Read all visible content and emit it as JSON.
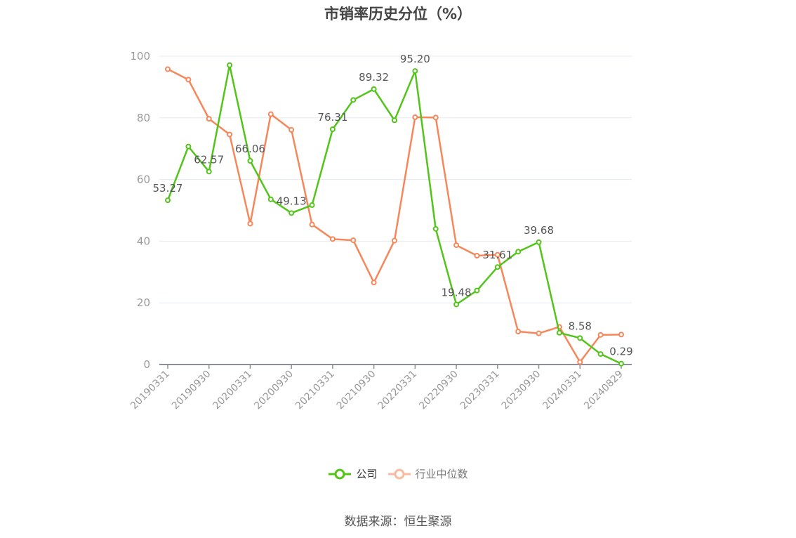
{
  "title": "市销率历史分位（%）",
  "legend": {
    "company": "公司",
    "industry": "行业中位数"
  },
  "source": "数据来源：恒生聚源",
  "colors": {
    "company": "#52c41a",
    "industry": "#f5875a",
    "industry_legend": "#f9bba0",
    "grid": "#e3e8f2",
    "axis": "#8a8f99",
    "label": "#999999",
    "value_label": "#555555"
  },
  "chart_data": {
    "type": "line",
    "title": "市销率历史分位（%）",
    "xlabel": "",
    "ylabel": "",
    "ylim": [
      0,
      100
    ],
    "yticks": [
      0,
      20,
      40,
      60,
      80,
      100
    ],
    "grid": true,
    "legend_position": "bottom",
    "x": [
      "20190331",
      "",
      "20190930",
      "",
      "20200331",
      "",
      "20200930",
      "",
      "20210331",
      "",
      "20210930",
      "",
      "20220331",
      "",
      "20220930",
      "",
      "20230331",
      "",
      "20230930",
      "",
      "20240331",
      "",
      "20240829"
    ],
    "xtick_labels": [
      "20190331",
      "20190930",
      "20200331",
      "20200930",
      "20210331",
      "20210930",
      "20220331",
      "20220930",
      "20230331",
      "20230930",
      "20240331",
      "20240829"
    ],
    "series": [
      {
        "name": "公司",
        "values": [
          53.27,
          70.7,
          62.57,
          97.1,
          66.06,
          53.6,
          49.13,
          51.7,
          76.31,
          85.8,
          89.32,
          79.2,
          95.2,
          44.0,
          19.48,
          24.0,
          31.61,
          36.6,
          39.68,
          10.3,
          8.58,
          3.4,
          0.29
        ],
        "labels": {
          "0": "53.27",
          "2": "62.57",
          "4": "66.06",
          "6": "49.13",
          "8": "76.31",
          "10": "89.32",
          "12": "95.20",
          "14": "19.48",
          "16": "31.61",
          "18": "39.68",
          "20": "8.58",
          "22": "0.29"
        }
      },
      {
        "name": "行业中位数",
        "values": [
          95.8,
          92.4,
          79.7,
          74.6,
          45.7,
          81.2,
          76.1,
          45.4,
          40.7,
          40.3,
          26.6,
          40.2,
          80.2,
          80.1,
          38.7,
          35.3,
          35.6,
          10.7,
          10.1,
          12.2,
          0.8,
          9.6,
          9.7
        ]
      }
    ]
  }
}
